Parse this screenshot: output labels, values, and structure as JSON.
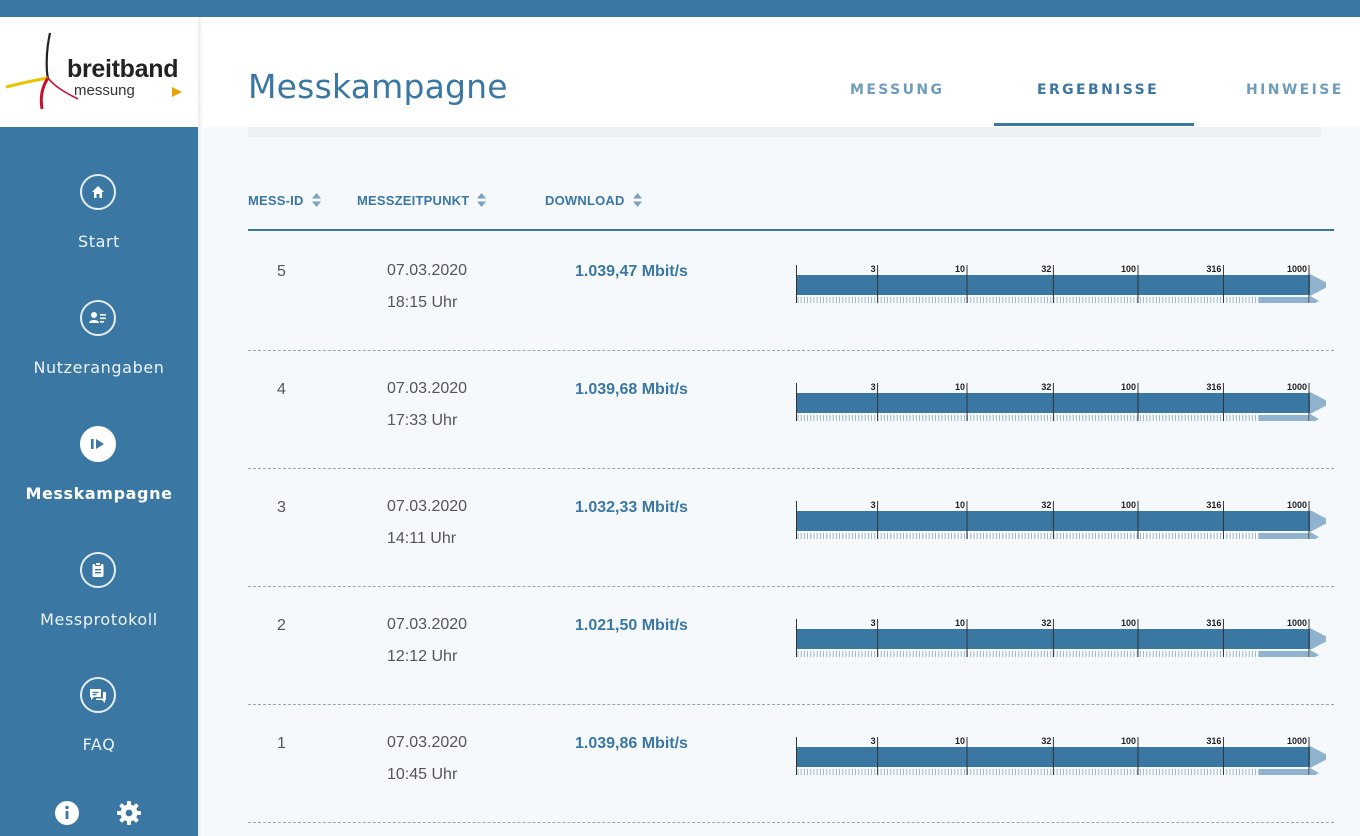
{
  "app": {
    "logo_main": "breitband",
    "logo_sub": "messung"
  },
  "sidebar": {
    "items": [
      {
        "label": "Start",
        "icon": "home-icon",
        "active": false
      },
      {
        "label": "Nutzerangaben",
        "icon": "user-card-icon",
        "active": false
      },
      {
        "label": "Messkampagne",
        "icon": "play-icon",
        "active": true
      },
      {
        "label": "Messprotokoll",
        "icon": "clipboard-icon",
        "active": false
      },
      {
        "label": "FAQ",
        "icon": "chat-icon",
        "active": false
      }
    ],
    "bottom_icons": [
      "info-icon",
      "gear-icon"
    ]
  },
  "header": {
    "title": "Messkampagne",
    "tabs": [
      {
        "label": "MESSUNG",
        "active": false
      },
      {
        "label": "ERGEBNISSE",
        "active": true
      },
      {
        "label": "HINWEISE",
        "active": false
      }
    ]
  },
  "table": {
    "columns": [
      "MESS-ID",
      "MESSZEITPUNKT",
      "DOWNLOAD"
    ],
    "scale_ticks": [
      "3",
      "10",
      "32",
      "100",
      "316",
      "1000"
    ],
    "rows": [
      {
        "id": "5",
        "date": "07.03.2020",
        "time": "18:15 Uhr",
        "download": "1.039,47 Mbit/s",
        "value": 1039.47
      },
      {
        "id": "4",
        "date": "07.03.2020",
        "time": "17:33 Uhr",
        "download": "1.039,68 Mbit/s",
        "value": 1039.68
      },
      {
        "id": "3",
        "date": "07.03.2020",
        "time": "14:11 Uhr",
        "download": "1.032,33 Mbit/s",
        "value": 1032.33
      },
      {
        "id": "2",
        "date": "07.03.2020",
        "time": "12:12 Uhr",
        "download": "1.021,50 Mbit/s",
        "value": 1021.5
      },
      {
        "id": "1",
        "date": "07.03.2020",
        "time": "10:45 Uhr",
        "download": "1.039,86 Mbit/s",
        "value": 1039.86
      }
    ]
  },
  "colors": {
    "primary": "#3a77a3",
    "light": "#8fb3cf",
    "pale": "#c5d7e6"
  }
}
